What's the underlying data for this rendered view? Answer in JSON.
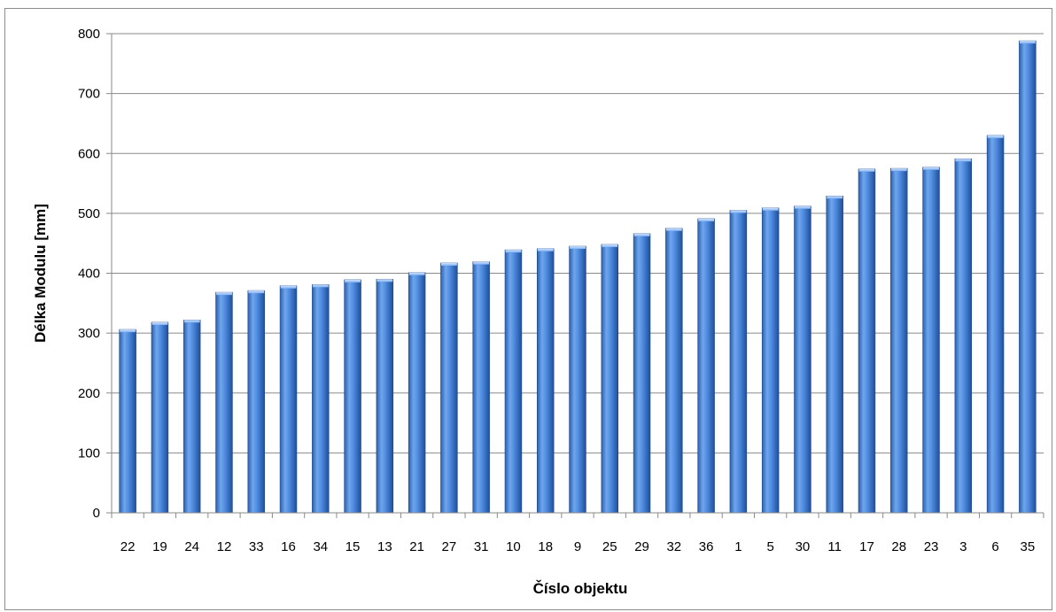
{
  "chart_data": {
    "type": "bar",
    "title": "",
    "xlabel": "Číslo objektu",
    "ylabel": "Délka Modulu  [mm]",
    "ylim": [
      0,
      800
    ],
    "yticks": [
      0,
      100,
      200,
      300,
      400,
      500,
      600,
      700,
      800
    ],
    "grid": "horizontal",
    "legend": "none",
    "categories": [
      "22",
      "19",
      "24",
      "12",
      "33",
      "16",
      "34",
      "15",
      "13",
      "21",
      "27",
      "31",
      "10",
      "18",
      "9",
      "25",
      "29",
      "32",
      "36",
      "1",
      "5",
      "30",
      "11",
      "17",
      "28",
      "23",
      "3",
      "6",
      "35"
    ],
    "values": [
      306,
      318,
      322,
      368,
      371,
      379,
      381,
      389,
      390,
      401,
      417,
      419,
      439,
      441,
      445,
      448,
      466,
      475,
      491,
      505,
      509,
      512,
      529,
      574,
      575,
      577,
      591,
      630,
      788
    ],
    "bar_color": "#4a84d4"
  }
}
